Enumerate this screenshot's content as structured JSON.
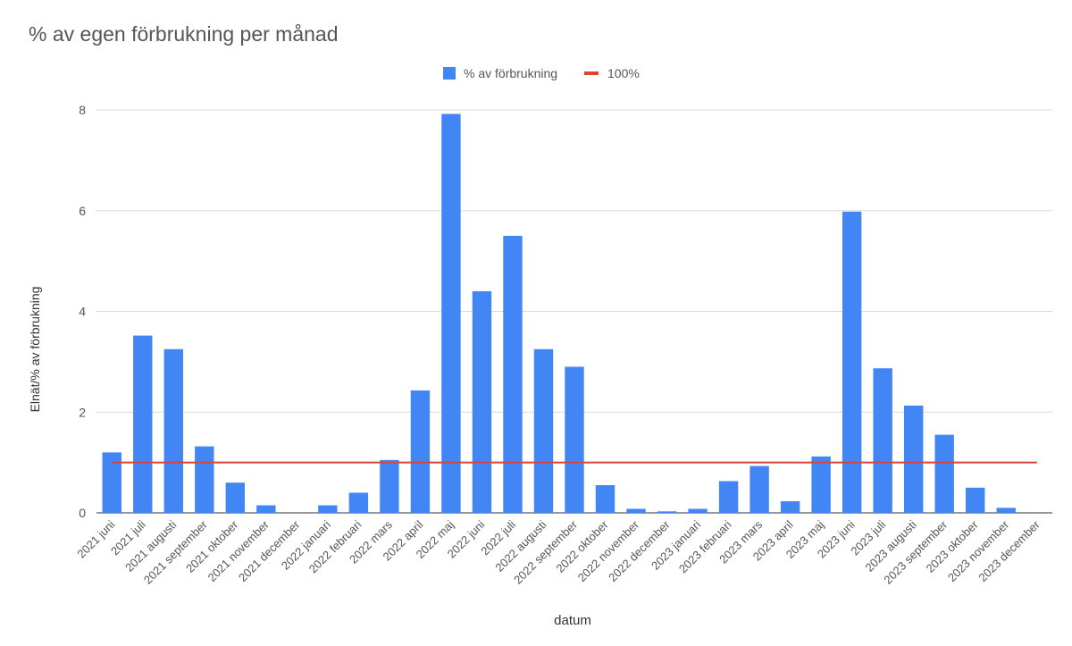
{
  "chart_data": {
    "type": "bar",
    "title": "% av egen förbrukning per månad",
    "xlabel": "datum",
    "ylabel": "Elnät/% av förbrukning",
    "ylim": [
      0,
      8
    ],
    "yticks": [
      0,
      2,
      4,
      6,
      8
    ],
    "grid": true,
    "legend_position": "top-center",
    "colors": {
      "bar": "#4285f4",
      "line": "#db4437",
      "grid": "#d9d9d9",
      "text": "#555555",
      "title": "#555555"
    },
    "categories": [
      "2021 juni",
      "2021 juli",
      "2021 augusti",
      "2021 september",
      "2021 oktober",
      "2021 november",
      "2021 december",
      "2022 januari",
      "2022 februari",
      "2022 mars",
      "2022 april",
      "2022 maj",
      "2022 juni",
      "2022 juli",
      "2022 augusti",
      "2022 september",
      "2022 oktober",
      "2022 november",
      "2022 december",
      "2023 januari",
      "2023 februari",
      "2023 mars",
      "2023 april",
      "2023 maj",
      "2023 juni",
      "2023 juli",
      "2023 augusti",
      "2023 september",
      "2023 oktober",
      "2023 november",
      "2023 december"
    ],
    "series": [
      {
        "name": "% av förbrukning",
        "type": "bar",
        "values": [
          1.2,
          3.52,
          3.25,
          1.32,
          0.6,
          0.15,
          0.0,
          0.15,
          0.4,
          1.05,
          2.43,
          7.92,
          4.4,
          5.5,
          3.25,
          2.9,
          0.55,
          0.08,
          0.03,
          0.08,
          0.63,
          0.93,
          0.23,
          1.12,
          5.98,
          2.87,
          2.13,
          1.55,
          0.5,
          0.1,
          0.0
        ]
      },
      {
        "name": "100%",
        "type": "line",
        "values": [
          1,
          1,
          1,
          1,
          1,
          1,
          1,
          1,
          1,
          1,
          1,
          1,
          1,
          1,
          1,
          1,
          1,
          1,
          1,
          1,
          1,
          1,
          1,
          1,
          1,
          1,
          1,
          1,
          1,
          1,
          1
        ]
      }
    ]
  }
}
